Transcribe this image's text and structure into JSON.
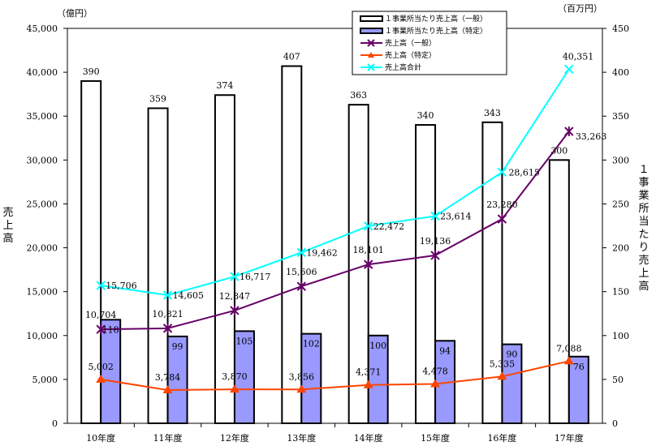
{
  "chart_data": {
    "type": "bar+line",
    "categories": [
      "10年度",
      "11年度",
      "12年度",
      "13年度",
      "14年度",
      "15年度",
      "16年度",
      "17年度"
    ],
    "left_axis": {
      "label": "売上高",
      "unit": "（億円）",
      "ylim": [
        0,
        45000
      ],
      "ticks": [
        "0",
        "5,000",
        "10,000",
        "15,000",
        "20,000",
        "25,000",
        "30,000",
        "35,000",
        "40,000",
        "45,000"
      ],
      "tick_values": [
        0,
        5000,
        10000,
        15000,
        20000,
        25000,
        30000,
        35000,
        40000,
        45000
      ]
    },
    "right_axis": {
      "label": "１事業所当たり売上高",
      "unit": "（百万円）",
      "ylim": [
        0,
        450
      ],
      "ticks": [
        "0",
        "50",
        "100",
        "150",
        "200",
        "250",
        "300",
        "350",
        "400",
        "450"
      ],
      "tick_values": [
        0,
        50,
        100,
        150,
        200,
        250,
        300,
        350,
        400,
        450
      ]
    },
    "bar_series": [
      {
        "name": "１事業所当たり売上高（一般）",
        "axis": "right",
        "color": "#ffffff",
        "values": [
          390,
          359,
          374,
          407,
          363,
          340,
          343,
          300
        ],
        "labels": [
          "390",
          "359",
          "374",
          "407",
          "363",
          "340",
          "343",
          "300"
        ]
      },
      {
        "name": "１事業所当たり売上高（特定）",
        "axis": "right",
        "color": "#9999ff",
        "values": [
          118,
          99,
          105,
          102,
          100,
          94,
          90,
          76
        ],
        "labels": [
          "118",
          "99",
          "105",
          "102",
          "100",
          "94",
          "90",
          "76"
        ]
      }
    ],
    "line_series": [
      {
        "name": "売上高（一般）",
        "axis": "left",
        "color": "#660066",
        "marker": "star",
        "values": [
          10704,
          10821,
          12847,
          15606,
          18101,
          19136,
          23280,
          33263
        ],
        "labels": [
          "10,704",
          "10,821",
          "12,847",
          "15,606",
          "18,101",
          "19,136",
          "23,280",
          "33,263"
        ]
      },
      {
        "name": "売上高（特定）",
        "axis": "left",
        "color": "#ff4500",
        "marker": "triangle",
        "values": [
          5002,
          3784,
          3870,
          3856,
          4371,
          4478,
          5335,
          7088
        ],
        "labels": [
          "5,002",
          "3,784",
          "3,870",
          "3,856",
          "4,371",
          "4,478",
          "5,335",
          "7,088"
        ]
      },
      {
        "name": "売上高合計",
        "axis": "left",
        "color": "#00ffff",
        "marker": "x",
        "values": [
          15706,
          14605,
          16717,
          19462,
          22472,
          23614,
          28615,
          40351
        ],
        "labels": [
          "15,706",
          "14,605",
          "16,717",
          "19,462",
          "22,472",
          "23,614",
          "28,615",
          "40,351"
        ]
      }
    ],
    "legend_position": "top-right"
  }
}
